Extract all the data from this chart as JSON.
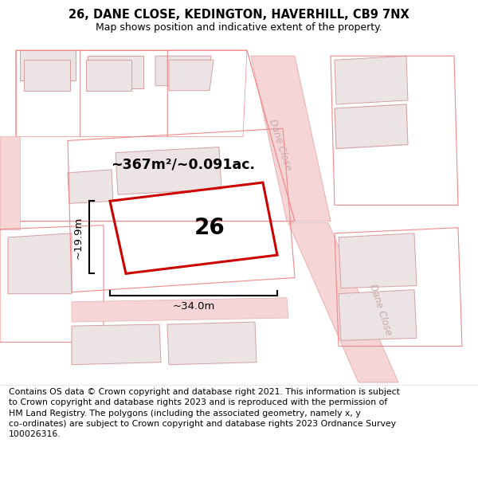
{
  "title": "26, DANE CLOSE, KEDINGTON, HAVERHILL, CB9 7NX",
  "subtitle": "Map shows position and indicative extent of the property.",
  "footer": "Contains OS data © Crown copyright and database right 2021. This information is subject\nto Crown copyright and database rights 2023 and is reproduced with the permission of\nHM Land Registry. The polygons (including the associated geometry, namely x, y\nco-ordinates) are subject to Crown copyright and database rights 2023 Ordnance Survey\n100026316.",
  "area_label": "~367m²/~0.091ac.",
  "plot_number": "26",
  "width_label": "~34.0m",
  "height_label": "~19.9m",
  "road_label_top": "Dane Close",
  "road_label_bottom": "Dane Close",
  "title_fontsize": 10.5,
  "subtitle_fontsize": 9,
  "footer_fontsize": 7.8,
  "map_bg": "#fdf8f8",
  "road_color": "#f5d5d5",
  "road_edge_color": "#e8b0b0",
  "bldg_fill": "#ece4e4",
  "bldg_edge": "#d4a0a0",
  "outline_color": "#f08888",
  "red_color": "#cc0000",
  "road_label_color": "#c8a8a8"
}
